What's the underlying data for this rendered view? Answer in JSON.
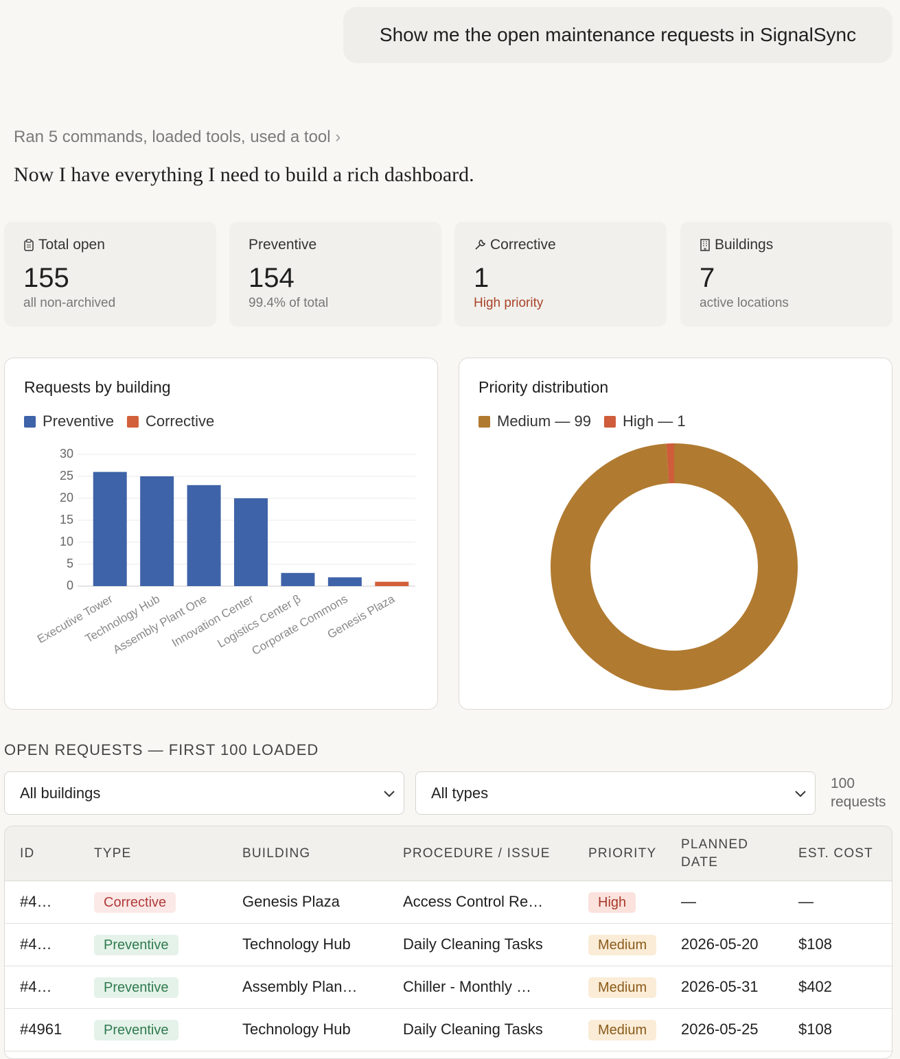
{
  "user_message": "Show me the open maintenance requests in SignalSync",
  "activity": "Ran 5 commands, loaded tools, used a tool",
  "response": "Now I have everything I need to build a rich dashboard.",
  "stats": [
    {
      "label": "Total open",
      "value": 155,
      "note": "all non-archived"
    },
    {
      "label": "Preventive",
      "value": 154,
      "note": "99.4% of total"
    },
    {
      "label": "Corrective",
      "value": 1,
      "note": "High priority",
      "note_color": "#a9432a"
    },
    {
      "label": "Buildings",
      "value": 7,
      "note": "active locations"
    }
  ],
  "chart_data": [
    {
      "type": "bar",
      "title": "Requests by building",
      "stacked": true,
      "grid": true,
      "legend": "top-left",
      "categories": [
        "Executive Tower",
        "Technology Hub",
        "Assembly Plant One",
        "Innovation Center",
        "Logistics Center β",
        "Corporate Commons",
        "Genesis Plaza"
      ],
      "series": [
        {
          "name": "Preventive",
          "color": "#3f63a8",
          "values": [
            26,
            25,
            23,
            20,
            3,
            2,
            0
          ]
        },
        {
          "name": "Corrective",
          "color": "#d2603a",
          "values": [
            0,
            0,
            0,
            0,
            0,
            0,
            1
          ]
        }
      ],
      "ylim": [
        0,
        30
      ],
      "yticks": [
        0,
        5,
        10,
        15,
        20,
        25,
        30
      ]
    },
    {
      "type": "pie",
      "title": "Priority distribution",
      "legend": "top-left",
      "labels": [
        "Medium — 99",
        "High — 1"
      ],
      "values": [
        99,
        1
      ],
      "colors": [
        "#b07a30",
        "#cf5c3a"
      ]
    }
  ],
  "requests": {
    "title": "OPEN REQUESTS — FIRST 100 LOADED",
    "filters": [
      "All buildings",
      "All types"
    ],
    "count": "100 requests",
    "columns": [
      "ID",
      "TYPE",
      "BUILDING",
      "PROCEDURE / ISSUE",
      "PRIORITY",
      "PLANNED DATE",
      "EST. COST"
    ],
    "rows": [
      [
        "#4…",
        "Corrective",
        "Genesis Plaza",
        "Access Control Re…",
        "High",
        "—",
        "—"
      ],
      [
        "#4…",
        "Preventive",
        "Technology Hub",
        "Daily Cleaning Tasks",
        "Medium",
        "2026-05-20",
        "$108"
      ],
      [
        "#4…",
        "Preventive",
        "Assembly Plan…",
        "Chiller - Monthly …",
        "Medium",
        "2026-05-31",
        "$402"
      ],
      [
        "#4961",
        "Preventive",
        "Technology Hub",
        "Daily Cleaning Tasks",
        "Medium",
        "2026-05-25",
        "$108"
      ]
    ],
    "badge_colors": {
      "Corrective": {
        "bg": "#fbe9e7",
        "color": "#b03a3a"
      },
      "Preventive": {
        "bg": "#e4f2e9",
        "color": "#2f7a4e"
      },
      "High": {
        "bg": "#fbe2dd",
        "color": "#a83a2a"
      },
      "Medium": {
        "bg": "#faecd6",
        "color": "#8a5a1a"
      }
    }
  }
}
